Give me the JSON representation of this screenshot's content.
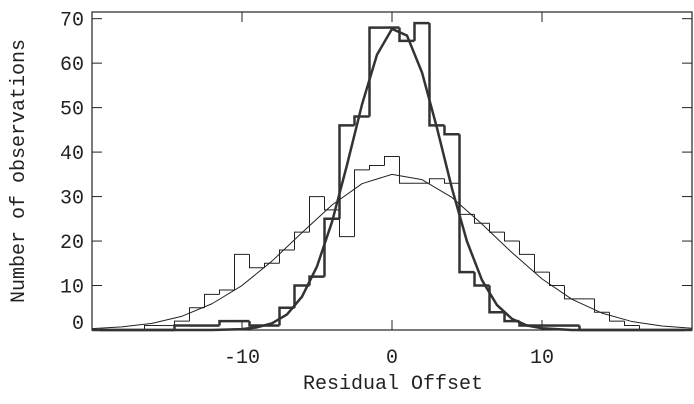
{
  "chart_data": {
    "type": "histogram",
    "xlabel": "Residual Offset",
    "ylabel": "Number of observations",
    "xlim": [
      -20,
      20
    ],
    "ylim": [
      0,
      71.5
    ],
    "xticks": [
      -10,
      0,
      10
    ],
    "yticks": [
      0,
      10,
      20,
      30,
      40,
      50,
      60,
      70
    ],
    "bins": [
      -19.5,
      -18.5,
      -17.5,
      -16.5,
      -15.5,
      -14.5,
      -13.5,
      -12.5,
      -11.5,
      -10.5,
      -9.5,
      -8.5,
      -7.5,
      -6.5,
      -5.5,
      -4.5,
      -3.5,
      -2.5,
      -1.5,
      -0.5,
      0.5,
      1.5,
      2.5,
      3.5,
      4.5,
      5.5,
      6.5,
      7.5,
      8.5,
      9.5,
      10.5,
      11.5,
      12.5,
      13.5,
      14.5,
      15.5,
      16.5,
      17.5,
      18.5,
      19.5
    ],
    "series": [
      {
        "color": "#222222",
        "line_width": 1,
        "values": [
          0,
          0,
          0,
          1,
          1,
          2,
          5,
          8,
          9,
          17,
          14,
          15,
          18,
          22,
          30,
          27,
          21,
          36,
          37,
          39,
          33,
          33,
          34,
          33,
          26,
          24,
          22,
          20,
          17,
          13,
          10,
          7,
          7,
          4,
          2,
          1,
          0,
          0,
          0
        ]
      },
      {
        "color": "#333333",
        "line_width": 2.5,
        "values": [
          0,
          0,
          0,
          0,
          0,
          1,
          1,
          1,
          2,
          2,
          1,
          1,
          5,
          10,
          12,
          25,
          46,
          48,
          68,
          68,
          65,
          69,
          46,
          44,
          13,
          10,
          4,
          2,
          1,
          1,
          1,
          1,
          0,
          0,
          0,
          0,
          0,
          0,
          0
        ]
      }
    ],
    "fits": [
      {
        "color": "#222222",
        "line_width": 1,
        "x": [
          -20,
          -18,
          -16,
          -14,
          -12,
          -10,
          -8,
          -6,
          -4,
          -2,
          0,
          2,
          4,
          6,
          8,
          10,
          12,
          14,
          16,
          18,
          20
        ],
        "values": [
          0.3,
          0.7,
          1.5,
          3.1,
          5.9,
          10.0,
          15.5,
          21.9,
          28.1,
          32.9,
          35.0,
          33.8,
          29.8,
          23.8,
          17.4,
          11.5,
          6.9,
          3.8,
          1.9,
          0.9,
          0.4
        ]
      },
      {
        "color": "#333333",
        "line_width": 2.5,
        "x": [
          -20,
          -12,
          -10,
          -9,
          -8,
          -7,
          -6,
          -5,
          -4,
          -3,
          -2,
          -1,
          0,
          1,
          2,
          3,
          4,
          5,
          6,
          7,
          8,
          9,
          10,
          12,
          20
        ],
        "values": [
          0,
          0,
          0.2,
          0.6,
          1.5,
          3.5,
          7.5,
          14.3,
          24.3,
          37.1,
          50.7,
          61.9,
          67.7,
          66.2,
          57.9,
          45.4,
          31.8,
          19.9,
          11.2,
          5.6,
          2.5,
          1.0,
          0.4,
          0,
          0
        ]
      }
    ]
  }
}
